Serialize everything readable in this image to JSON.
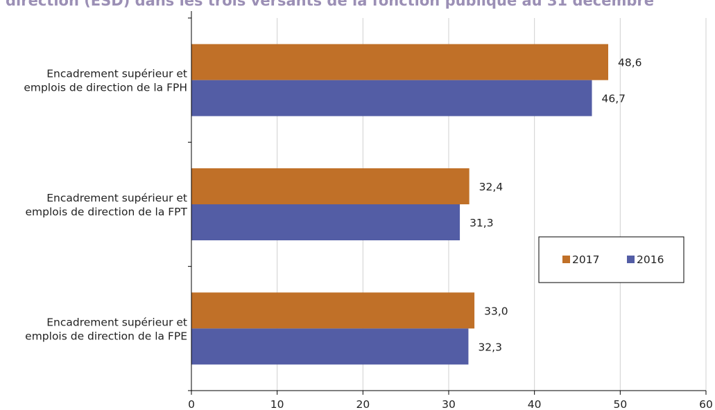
{
  "chart_data": {
    "type": "bar",
    "orientation": "horizontal",
    "title": "direction (ESD) dans les trois versants de la fonction publique au 31 décembre",
    "categories": [
      [
        "Encadrement supérieur et",
        "emplois de direction de la FPH"
      ],
      [
        "Encadrement supérieur et",
        "emplois de direction de la FPT"
      ],
      [
        "Encadrement supérieur et",
        "emplois de direction de la FPE"
      ]
    ],
    "series": [
      {
        "name": "2017",
        "color": "#C07028",
        "values": [
          48.6,
          32.4,
          33.0
        ],
        "labels": [
          "48,6",
          "32,4",
          "33,0"
        ]
      },
      {
        "name": "2016",
        "color": "#535DA5",
        "values": [
          46.7,
          31.3,
          32.3
        ],
        "labels": [
          "46,7",
          "31,3",
          "32,3"
        ]
      }
    ],
    "xlim": [
      0,
      60
    ],
    "xticks": [
      0,
      10,
      20,
      30,
      40,
      50,
      60
    ],
    "grid": "vertical",
    "legend_position": "right-middle",
    "title_color": "#9b8fb5"
  }
}
